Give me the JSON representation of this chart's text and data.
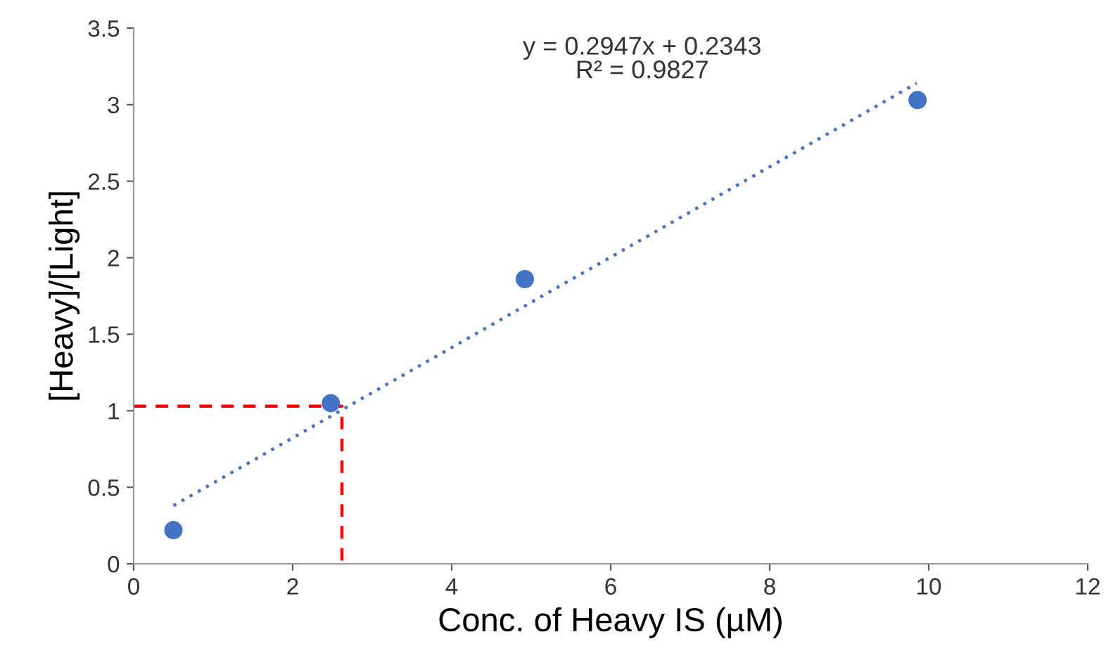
{
  "chart_data": {
    "type": "scatter",
    "xlabel": "Conc. of Heavy IS (µM)",
    "ylabel": "[Heavy]/[Light]",
    "xlim": [
      0,
      12
    ],
    "xticks": [
      0,
      2,
      4,
      6,
      8,
      10,
      12
    ],
    "ylim": [
      0,
      3.5
    ],
    "yticks": [
      0,
      0.5,
      1,
      1.5,
      2,
      2.5,
      3,
      3.5
    ],
    "grid": false,
    "legend": false,
    "marker": "circle",
    "series": [
      {
        "color": "#4472c4",
        "x": [
          0.5,
          2.48,
          4.92,
          9.86
        ],
        "values": [
          0.22,
          1.05,
          1.86,
          3.03
        ]
      },
      {
        "type": "line",
        "color": "#4472c4",
        "line_style": "dotted",
        "marker": "none",
        "x": [
          0.5,
          9.85
        ],
        "values": [
          0.38,
          3.14
        ]
      },
      {
        "type": "line",
        "color": "#ff0000",
        "line_style": "dashed",
        "marker": "none",
        "x": [
          0,
          2.62,
          2.62
        ],
        "values": [
          1.03,
          1.03,
          0
        ]
      }
    ],
    "annotations": [
      "y = 0.2947x + 0.2343\nR² = 0.9827"
    ]
  }
}
